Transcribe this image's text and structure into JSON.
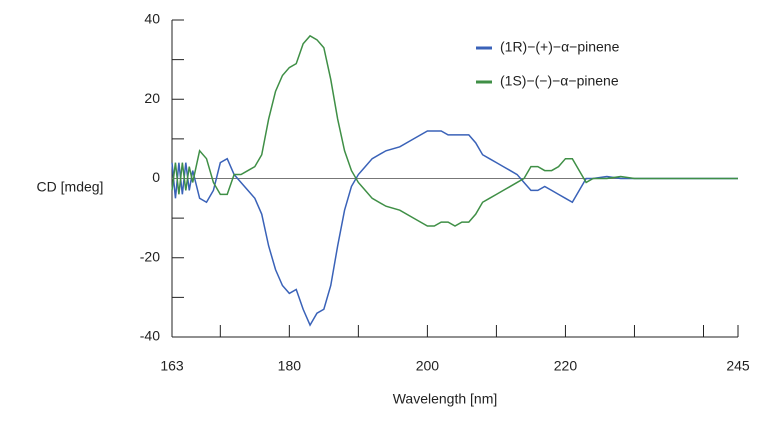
{
  "chart_data": {
    "type": "line",
    "ylabel": "CD [mdeg]",
    "xlabel": "Wavelength [nm]",
    "x": [
      163,
      163.5,
      164,
      164.5,
      165,
      165.5,
      166,
      167,
      168,
      169,
      170,
      171,
      172,
      173,
      174,
      175,
      176,
      177,
      178,
      179,
      180,
      181,
      182,
      183,
      184,
      185,
      186,
      187,
      188,
      189,
      190,
      191,
      192,
      194,
      196,
      198,
      200,
      201,
      202,
      203,
      204,
      205,
      206,
      207,
      208,
      209,
      210,
      211,
      212,
      213,
      214,
      215,
      216,
      217,
      218,
      219,
      220,
      221,
      222,
      223,
      224,
      226,
      228,
      230,
      235,
      240,
      245
    ],
    "series": [
      {
        "name": "(1R)−(+)−α−pinene",
        "color": "#3a62b8",
        "values": [
          4,
          -5,
          4,
          -4,
          4,
          -3,
          2,
          -5,
          -6,
          -3,
          4,
          5,
          1,
          -1,
          -3,
          -5,
          -9,
          -17,
          -23,
          -27,
          -29,
          -28,
          -33,
          -37,
          -34,
          -33,
          -27,
          -17,
          -8,
          -2,
          1,
          3,
          5,
          7,
          8,
          10,
          12,
          12,
          12,
          11,
          11,
          11,
          11,
          9,
          6,
          5,
          4,
          3,
          2,
          1,
          -1,
          -3,
          -3,
          -2,
          -3,
          -4,
          -5,
          -6,
          -3,
          0,
          0,
          0.5,
          0,
          0,
          0,
          0,
          0
        ]
      },
      {
        "name": "(1S)−(−)−α−pinene",
        "color": "#3f8f46",
        "values": [
          -3,
          4,
          -4,
          4,
          -3,
          3,
          -1,
          7,
          5,
          -1,
          -4,
          -4,
          1,
          1,
          2,
          3,
          6,
          15,
          22,
          26,
          28,
          29,
          34,
          36,
          35,
          33,
          25,
          15,
          7,
          2,
          -1,
          -3,
          -5,
          -7,
          -8,
          -10,
          -12,
          -12,
          -11,
          -11,
          -12,
          -11,
          -11,
          -9,
          -6,
          -5,
          -4,
          -3,
          -2,
          -1,
          0,
          3,
          3,
          2,
          2,
          3,
          5,
          5,
          2,
          -1,
          0,
          0,
          0.5,
          0,
          0,
          0,
          0
        ]
      }
    ],
    "xlim": [
      163,
      245
    ],
    "xticks": [
      163,
      180,
      200,
      220,
      245
    ],
    "xminorticks": [
      170,
      190,
      210,
      230,
      240
    ],
    "ylim": [
      -40,
      40
    ],
    "yticks": [
      -40,
      -20,
      0,
      20,
      40
    ],
    "yminorticks": [
      -30,
      -10,
      10,
      30
    ],
    "zero_line": true,
    "legend": "upper right"
  }
}
